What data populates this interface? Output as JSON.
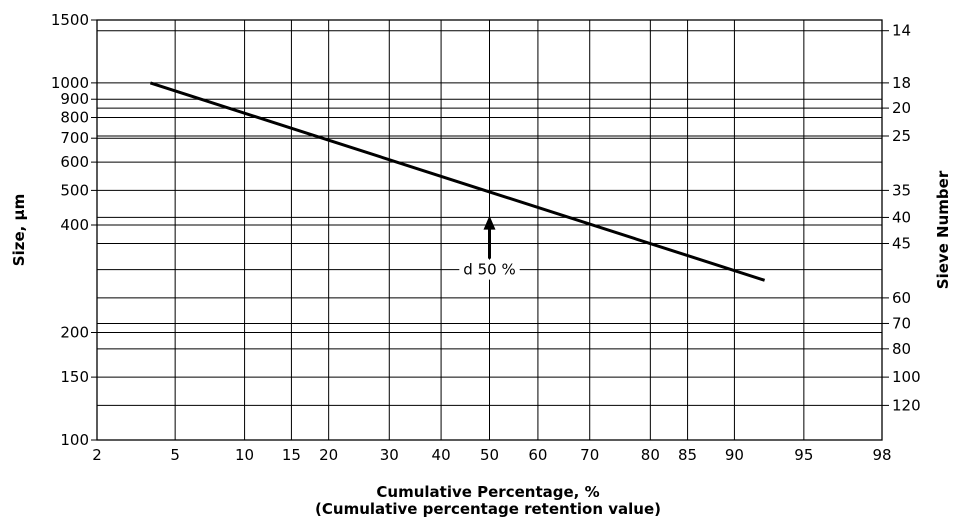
{
  "chart_data": {
    "type": "line",
    "xlabel": "Cumulative Percentage, %",
    "xlabel_sub": "(Cumulative percentage retention value)",
    "ylabel": "Size, µm",
    "y2label": "Sieve Number",
    "x_scale": "probability",
    "y_scale": "log",
    "xlim": [
      2,
      98
    ],
    "ylim": [
      100,
      1500
    ],
    "grid": true,
    "x_ticks": [
      "2",
      "5",
      "10",
      "15",
      "20",
      "30",
      "40",
      "50",
      "60",
      "70",
      "80",
      "85",
      "90",
      "95",
      "98"
    ],
    "y_ticks": [
      "1500",
      "1000",
      "900",
      "800",
      "700",
      "600",
      "500",
      "400",
      "200",
      "150",
      "100"
    ],
    "y2_ticks": [
      {
        "label": "14",
        "size": 1400
      },
      {
        "label": "18",
        "size": 1000
      },
      {
        "label": "20",
        "size": 850
      },
      {
        "label": "25",
        "size": 710
      },
      {
        "label": "35",
        "size": 500
      },
      {
        "label": "40",
        "size": 420
      },
      {
        "label": "45",
        "size": 355
      },
      {
        "label": "60",
        "size": 250
      },
      {
        "label": "70",
        "size": 212
      },
      {
        "label": "80",
        "size": 180
      },
      {
        "label": "100",
        "size": 150
      },
      {
        "label": "120",
        "size": 125
      }
    ],
    "series": [
      {
        "x": [
          3.8,
          50,
          92.5
        ],
        "y": [
          1000,
          495,
          280
        ]
      }
    ],
    "annotation": {
      "text": "d 50 %",
      "x": 50,
      "y_arrow_tip": 425
    }
  }
}
